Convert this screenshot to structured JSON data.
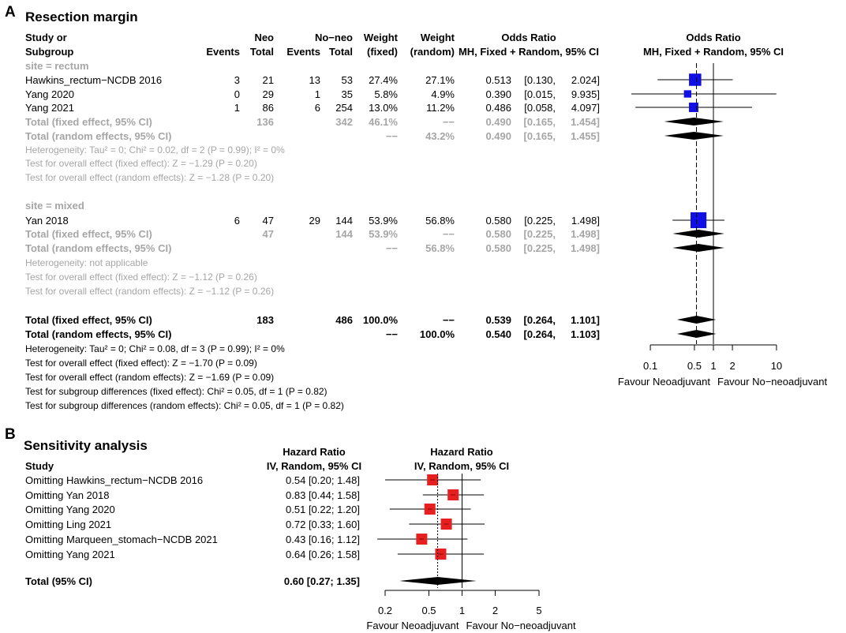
{
  "panel_a": {
    "letter": "A",
    "title": "Resection margin",
    "headers": {
      "study": [
        "Study or",
        "Subgroup"
      ],
      "neo": "Neo",
      "noneo": "No−neo",
      "events": "Events",
      "total": "Total",
      "weight_label": "Weight",
      "fixed": "(fixed)",
      "random": "(random)",
      "or": "Odds Ratio",
      "method": "MH, Fixed + Random, 95% CI"
    },
    "rows": [
      {
        "kind": "group",
        "label": "site = rectum"
      },
      {
        "kind": "study",
        "label": "Hawkins_rectum−NCDB 2016",
        "ev1": "3",
        "tot1": "21",
        "ev2": "13",
        "tot2": "53",
        "wf": "27.4%",
        "wr": "27.1%",
        "est": "0.513",
        "ci": "[0.130,",
        "ci2": "2.024]"
      },
      {
        "kind": "study",
        "label": "Yang 2020",
        "ev1": "0",
        "tot1": "29",
        "ev2": "1",
        "tot2": "35",
        "wf": "5.8%",
        "wr": "4.9%",
        "est": "0.390",
        "ci": "[0.015,",
        "ci2": "9.935]"
      },
      {
        "kind": "study",
        "label": "Yang 2021",
        "ev1": "1",
        "tot1": "86",
        "ev2": "6",
        "tot2": "254",
        "wf": "13.0%",
        "wr": "11.2%",
        "est": "0.486",
        "ci": "[0.058,",
        "ci2": "4.097]"
      },
      {
        "kind": "subtotal",
        "label": "Total (fixed effect, 95% CI)",
        "tot1": "136",
        "tot2": "342",
        "wf": "46.1%",
        "wr": "−−",
        "est": "0.490",
        "ci": "[0.165,",
        "ci2": "1.454]"
      },
      {
        "kind": "subtotal",
        "label": "Total (random effects, 95% CI)",
        "wf": "−−",
        "wr": "43.2%",
        "est": "0.490",
        "ci": "[0.165,",
        "ci2": "1.455]"
      },
      {
        "kind": "note",
        "label": "Heterogeneity: Tau² = 0; Chi² = 0.02, df = 2 (P = 0.99); I² = 0%"
      },
      {
        "kind": "note",
        "label": "Test for overall effect (fixed effect): Z = −1.29 (P = 0.20)"
      },
      {
        "kind": "note",
        "label": "Test for overall effect (random effects): Z = −1.28 (P = 0.20)"
      },
      {
        "kind": "group",
        "label": "site = mixed"
      },
      {
        "kind": "study",
        "label": "Yan 2018",
        "ev1": "6",
        "tot1": "47",
        "ev2": "29",
        "tot2": "144",
        "wf": "53.9%",
        "wr": "56.8%",
        "est": "0.580",
        "ci": "[0.225,",
        "ci2": "1.498]"
      },
      {
        "kind": "subtotal",
        "label": "Total (fixed effect, 95% CI)",
        "tot1": "47",
        "tot2": "144",
        "wf": "53.9%",
        "wr": "−−",
        "est": "0.580",
        "ci": "[0.225,",
        "ci2": "1.498]"
      },
      {
        "kind": "subtotal",
        "label": "Total (random effects, 95% CI)",
        "wf": "−−",
        "wr": "56.8%",
        "est": "0.580",
        "ci": "[0.225,",
        "ci2": "1.498]"
      },
      {
        "kind": "note",
        "label": "Heterogeneity: not applicable"
      },
      {
        "kind": "note",
        "label": "Test for overall effect (fixed effect): Z = −1.12 (P = 0.26)"
      },
      {
        "kind": "note",
        "label": "Test for overall effect (random effects): Z = −1.12 (P = 0.26)"
      },
      {
        "kind": "total",
        "label": "Total (fixed effect, 95% CI)",
        "tot1": "183",
        "tot2": "486",
        "wf": "100.0%",
        "wr": "−−",
        "est": "0.539",
        "ci": "[0.264,",
        "ci2": "1.101]"
      },
      {
        "kind": "total",
        "label": "Total (random effects, 95% CI)",
        "wf": "−−",
        "wr": "100.0%",
        "est": "0.540",
        "ci": "[0.264,",
        "ci2": "1.103]"
      },
      {
        "kind": "tnote",
        "label": "Heterogeneity: Tau² = 0; Chi² = 0.08, df = 3 (P = 0.99); I² = 0%"
      },
      {
        "kind": "tnote",
        "label": "Test for overall effect (fixed effect): Z = −1.70 (P = 0.09)"
      },
      {
        "kind": "tnote",
        "label": "Test for overall effect (random effects): Z = −1.69 (P = 0.09)"
      },
      {
        "kind": "tnote",
        "label": "Test for subgroup differences (fixed effect): Chi² = 0.05, df = 1 (P = 0.82)"
      },
      {
        "kind": "tnote",
        "label": "Test for subgroup differences (random effects): Chi² = 0.05, df = 1 (P = 0.82)"
      }
    ],
    "axis_left": "Favour Neoadjuvant",
    "axis_right": "Favour No−neoadjuvant"
  },
  "panel_b": {
    "letter": "B",
    "title": "Sensitivity analysis",
    "headers": {
      "study": "Study",
      "hr": "Hazard Ratio",
      "method": "IV, Random, 95% CI"
    },
    "rows": [
      {
        "label": "Omitting Hawkins_rectum−NCDB 2016",
        "text": "0.54 [0.20; 1.48]"
      },
      {
        "label": "Omitting Yan 2018",
        "text": "0.83 [0.44; 1.58]"
      },
      {
        "label": "Omitting Yang 2020",
        "text": "0.51 [0.22; 1.20]"
      },
      {
        "label": "Omitting Ling 2021",
        "text": "0.72 [0.33; 1.60]"
      },
      {
        "label": "Omitting Marqueen_stomach−NCDB 2021",
        "text": "0.43 [0.16; 1.12]"
      },
      {
        "label": "Omitting Yang 2021",
        "text": "0.64 [0.26; 1.58]"
      }
    ],
    "total": {
      "label": "Total (95% CI)",
      "text": "0.60 [0.27; 1.35]"
    },
    "axis_left": "Favour Neoadjuvant",
    "axis_right": "Favour No−neoadjuvant"
  },
  "chart_data": [
    {
      "type": "forest",
      "title": "Resection margin",
      "measure": "Odds Ratio (MH, Fixed + Random, 95% CI)",
      "scale": "log",
      "xlim": [
        0.05,
        20
      ],
      "ticks": [
        0.1,
        0.5,
        1,
        2,
        10
      ],
      "tick_labels": [
        "0.1",
        "0.5",
        "1",
        "2",
        "10"
      ],
      "studies": [
        {
          "name": "Hawkins_rectum−NCDB 2016",
          "group": "rectum",
          "estimate": 0.513,
          "lower": 0.13,
          "upper": 2.024,
          "weight_fixed": 27.4
        },
        {
          "name": "Yang 2020",
          "group": "rectum",
          "estimate": 0.39,
          "lower": 0.015,
          "upper": 9.935,
          "weight_fixed": 5.8
        },
        {
          "name": "Yang 2021",
          "group": "rectum",
          "estimate": 0.486,
          "lower": 0.058,
          "upper": 4.097,
          "weight_fixed": 13.0
        },
        {
          "name": "Yan 2018",
          "group": "mixed",
          "estimate": 0.58,
          "lower": 0.225,
          "upper": 1.498,
          "weight_fixed": 53.9
        }
      ],
      "summaries": [
        {
          "name": "rectum fixed",
          "estimate": 0.49,
          "lower": 0.165,
          "upper": 1.454
        },
        {
          "name": "rectum random",
          "estimate": 0.49,
          "lower": 0.165,
          "upper": 1.455
        },
        {
          "name": "mixed fixed",
          "estimate": 0.58,
          "lower": 0.225,
          "upper": 1.498
        },
        {
          "name": "mixed random",
          "estimate": 0.58,
          "lower": 0.225,
          "upper": 1.498
        },
        {
          "name": "overall fixed",
          "estimate": 0.539,
          "lower": 0.264,
          "upper": 1.101
        },
        {
          "name": "overall random",
          "estimate": 0.54,
          "lower": 0.264,
          "upper": 1.103
        }
      ],
      "reference_line": 0.539,
      "xlabel_left": "Favour Neoadjuvant",
      "xlabel_right": "Favour No−neoadjuvant",
      "colors": {
        "square": "#1010e6",
        "diamond": "#000000",
        "muted": "#a6a6a6"
      }
    },
    {
      "type": "forest",
      "title": "Sensitivity analysis",
      "measure": "Hazard Ratio (IV, Random, 95% CI)",
      "scale": "log",
      "xlim": [
        0.2,
        5
      ],
      "ticks": [
        0.2,
        0.5,
        1,
        2,
        5
      ],
      "tick_labels": [
        "0.2",
        "0.5",
        "1",
        "2",
        "5"
      ],
      "studies": [
        {
          "name": "Omitting Hawkins_rectum−NCDB 2016",
          "estimate": 0.54,
          "lower": 0.2,
          "upper": 1.48
        },
        {
          "name": "Omitting Yan 2018",
          "estimate": 0.83,
          "lower": 0.44,
          "upper": 1.58
        },
        {
          "name": "Omitting Yang 2020",
          "estimate": 0.51,
          "lower": 0.22,
          "upper": 1.2
        },
        {
          "name": "Omitting Ling 2021",
          "estimate": 0.72,
          "lower": 0.33,
          "upper": 1.6
        },
        {
          "name": "Omitting Marqueen_stomach−NCDB 2021",
          "estimate": 0.43,
          "lower": 0.16,
          "upper": 1.12
        },
        {
          "name": "Omitting Yang 2021",
          "estimate": 0.64,
          "lower": 0.26,
          "upper": 1.58
        }
      ],
      "summary": {
        "name": "Total (95% CI)",
        "estimate": 0.6,
        "lower": 0.27,
        "upper": 1.35
      },
      "reference_line": 0.6,
      "xlabel_left": "Favour Neoadjuvant",
      "xlabel_right": "Favour No−neoadjuvant",
      "colors": {
        "square": "#e62020",
        "diamond": "#000000"
      }
    }
  ]
}
